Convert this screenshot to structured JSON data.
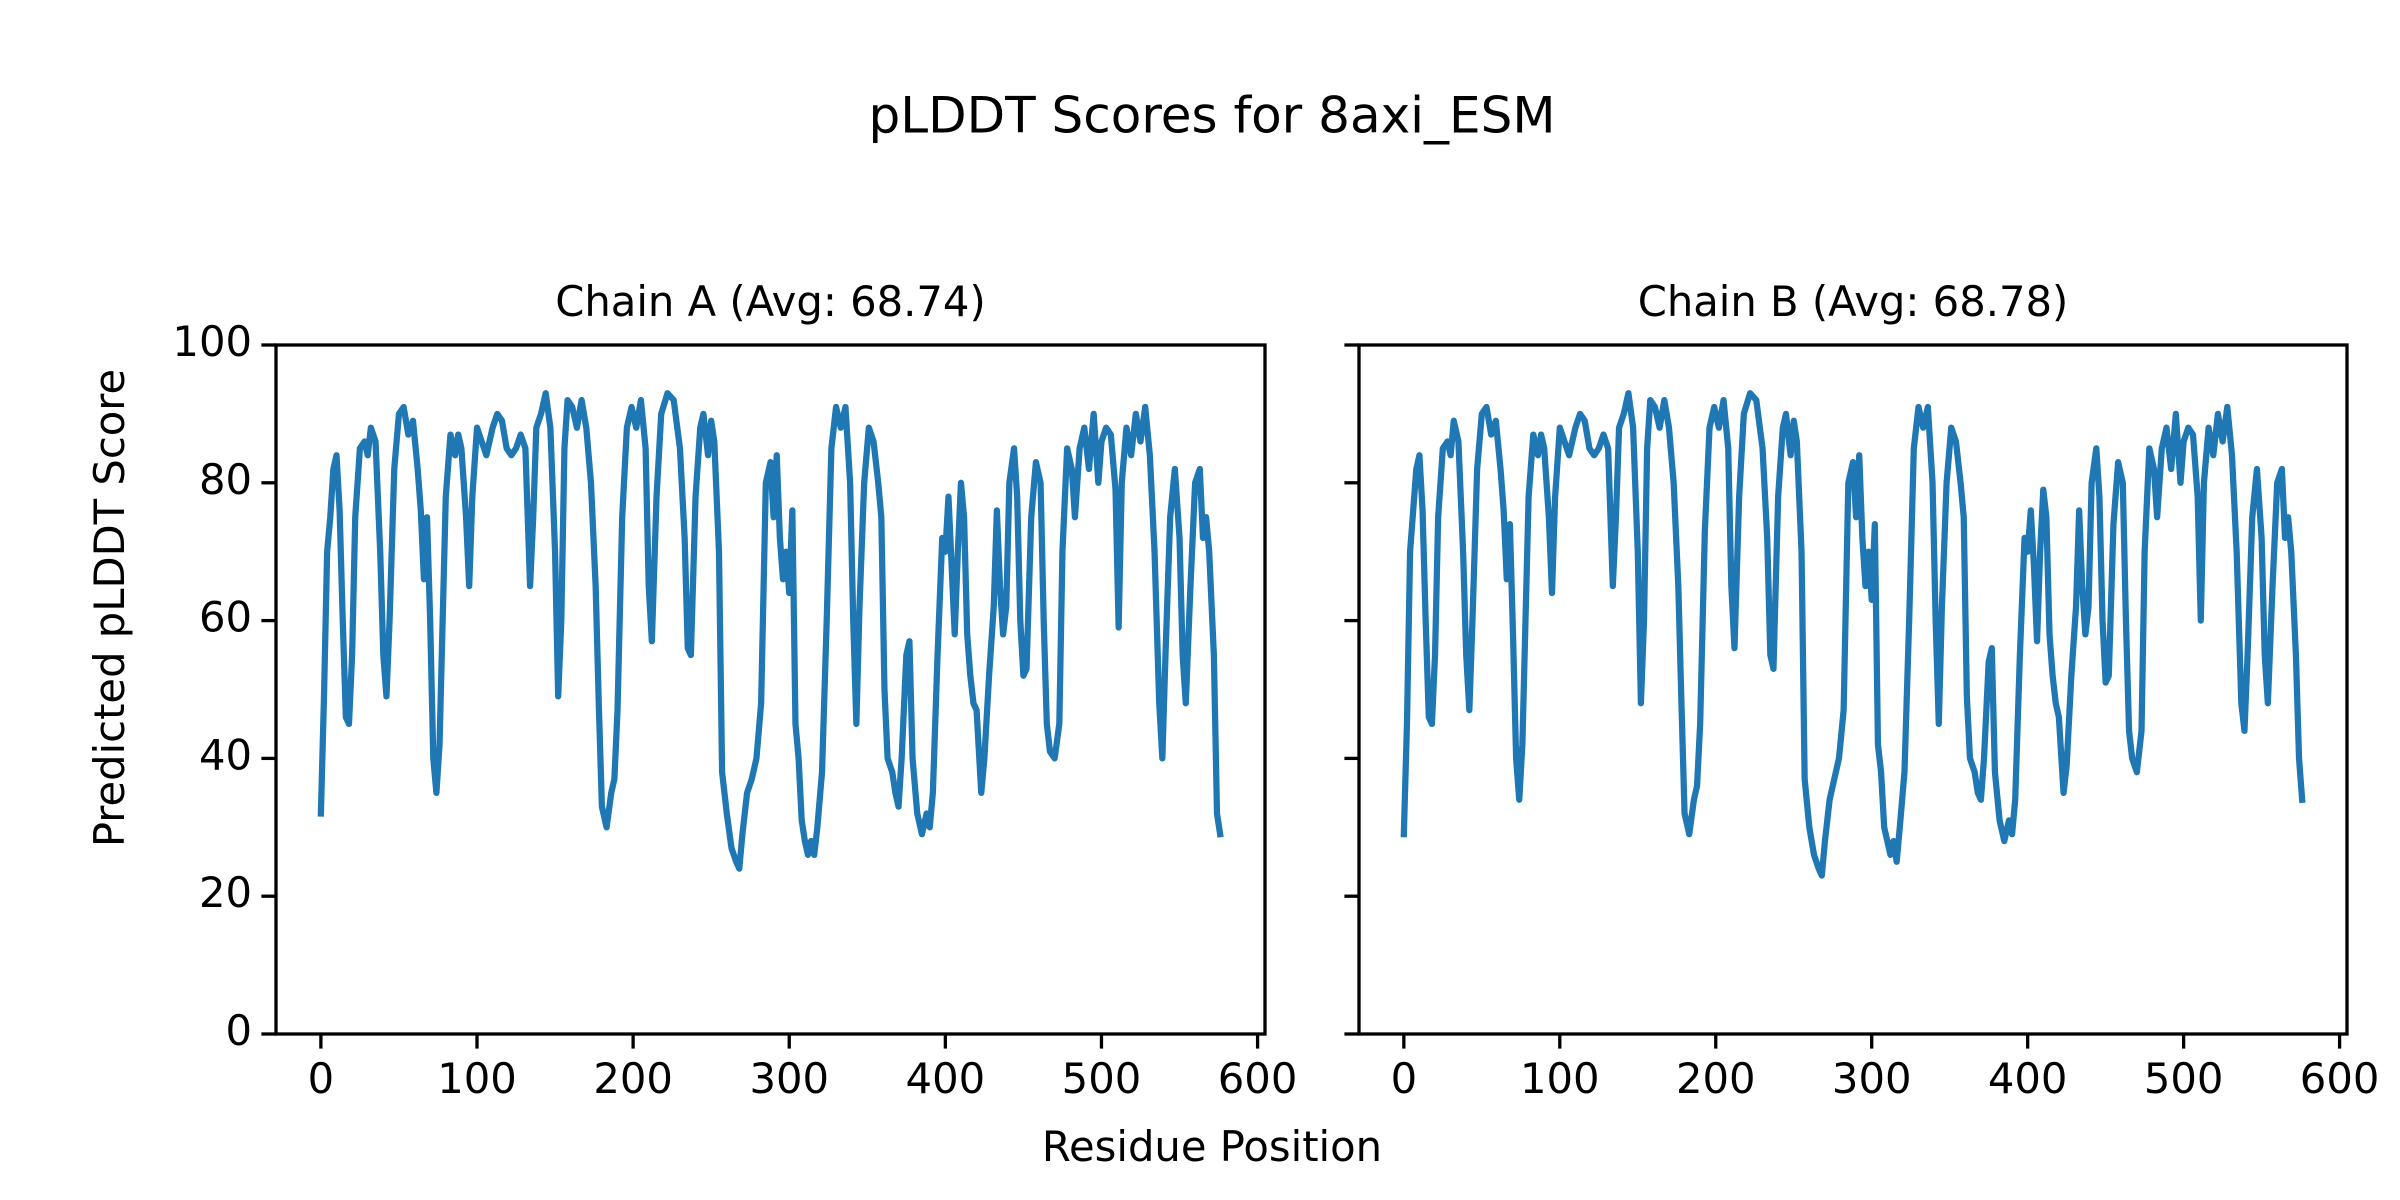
{
  "title": "pLDDT Scores for 8axi_ESM",
  "x_label": "Residue Position",
  "y_label": "Predicted pLDDT Score",
  "chart_data": [
    {
      "type": "line",
      "title": "Chain A (Avg: 68.74)",
      "color": "#1f77b4",
      "xlim": [
        -28.75,
        604.75
      ],
      "ylim": [
        0,
        100
      ],
      "xticks": [
        0,
        100,
        200,
        300,
        400,
        500,
        600
      ],
      "yticks": [
        0,
        20,
        40,
        60,
        80,
        100
      ],
      "ytick_labels": true,
      "x": [
        0,
        2,
        4,
        6,
        8,
        10,
        12,
        14,
        16,
        18,
        20,
        22,
        25,
        28,
        30,
        32,
        35,
        38,
        40,
        42,
        44,
        47,
        50,
        53,
        56,
        59,
        62,
        64,
        66,
        68,
        70,
        72,
        74,
        76,
        78,
        80,
        83,
        86,
        88,
        90,
        93,
        95,
        97,
        100,
        103,
        106,
        110,
        113,
        116,
        119,
        122,
        125,
        128,
        131,
        134,
        136,
        138,
        141,
        144,
        147,
        150,
        152,
        154,
        156,
        158,
        161,
        164,
        167,
        170,
        173,
        176,
        178,
        180,
        183,
        186,
        188,
        190,
        193,
        196,
        199,
        202,
        205,
        208,
        210,
        212,
        215,
        218,
        222,
        226,
        230,
        233,
        235,
        237,
        240,
        243,
        245,
        248,
        250,
        252,
        255,
        257,
        260,
        263,
        266,
        268,
        270,
        273,
        276,
        279,
        282,
        285,
        288,
        290,
        292,
        294,
        296,
        298,
        300,
        302,
        304,
        306,
        308,
        310,
        312,
        314,
        316,
        318,
        321,
        324,
        327,
        330,
        333,
        336,
        339,
        341,
        343,
        345,
        348,
        351,
        354,
        357,
        359,
        361,
        363,
        366,
        368,
        370,
        372,
        375,
        377,
        379,
        382,
        385,
        388,
        390,
        392,
        395,
        398,
        400,
        402,
        404,
        406,
        408,
        410,
        412,
        414,
        416,
        418,
        420,
        423,
        425,
        428,
        431,
        433,
        435,
        437,
        439,
        441,
        444,
        446,
        448,
        450,
        452,
        455,
        458,
        461,
        463,
        465,
        467,
        470,
        473,
        475,
        478,
        481,
        483,
        486,
        489,
        492,
        495,
        498,
        500,
        503,
        506,
        509,
        511,
        513,
        516,
        519,
        522,
        525,
        528,
        531,
        534,
        537,
        539,
        541,
        544,
        547,
        550,
        552,
        554,
        557,
        560,
        563,
        565,
        567,
        569,
        572,
        574,
        576
      ],
      "values": [
        32,
        49,
        70,
        75,
        82,
        84,
        76,
        60,
        46,
        45,
        55,
        75,
        85,
        86,
        84,
        88,
        86,
        70,
        55,
        49,
        60,
        82,
        90,
        91,
        87,
        89,
        82,
        76,
        66,
        75,
        60,
        40,
        35,
        42,
        60,
        78,
        87,
        84,
        87,
        85,
        75,
        65,
        78,
        88,
        86,
        84,
        88,
        90,
        89,
        85,
        84,
        85,
        87,
        85,
        65,
        75,
        88,
        90,
        93,
        88,
        70,
        49,
        60,
        85,
        92,
        91,
        88,
        92,
        88,
        80,
        65,
        48,
        33,
        30,
        35,
        37,
        47,
        75,
        88,
        91,
        88,
        92,
        85,
        65,
        57,
        78,
        90,
        93,
        92,
        85,
        72,
        56,
        55,
        78,
        88,
        90,
        84,
        89,
        86,
        70,
        38,
        32,
        27,
        25,
        24,
        29,
        35,
        37,
        40,
        48,
        80,
        83,
        75,
        84,
        72,
        66,
        70,
        64,
        76,
        45,
        40,
        31,
        28,
        26,
        28,
        26,
        30,
        38,
        60,
        85,
        91,
        88,
        91,
        80,
        60,
        45,
        62,
        80,
        88,
        86,
        80,
        75,
        50,
        40,
        38,
        35,
        33,
        40,
        55,
        57,
        40,
        32,
        29,
        32,
        30,
        35,
        55,
        72,
        70,
        78,
        68,
        58,
        70,
        80,
        75,
        58,
        52,
        48,
        47,
        35,
        40,
        52,
        62,
        76,
        65,
        58,
        62,
        80,
        85,
        78,
        60,
        52,
        53,
        75,
        83,
        80,
        60,
        45,
        41,
        40,
        45,
        70,
        85,
        82,
        75,
        85,
        88,
        82,
        90,
        80,
        86,
        88,
        87,
        79,
        59,
        80,
        88,
        84,
        90,
        86,
        91,
        84,
        70,
        48,
        40,
        55,
        75,
        82,
        72,
        55,
        48,
        65,
        80,
        82,
        72,
        75,
        70,
        55,
        32,
        29
      ]
    },
    {
      "type": "line",
      "title": "Chain B (Avg: 68.78)",
      "color": "#1f77b4",
      "xlim": [
        -28.75,
        604.75
      ],
      "ylim": [
        0,
        100
      ],
      "xticks": [
        0,
        100,
        200,
        300,
        400,
        500,
        600
      ],
      "yticks": [
        0,
        20,
        40,
        60,
        80,
        100
      ],
      "ytick_labels": false,
      "x": [
        0,
        2,
        4,
        6,
        8,
        10,
        12,
        14,
        16,
        18,
        20,
        22,
        25,
        28,
        30,
        32,
        35,
        38,
        40,
        42,
        44,
        47,
        50,
        53,
        56,
        59,
        62,
        64,
        66,
        68,
        70,
        72,
        74,
        76,
        78,
        80,
        83,
        86,
        88,
        90,
        93,
        95,
        97,
        100,
        103,
        106,
        110,
        113,
        116,
        119,
        122,
        125,
        128,
        131,
        134,
        136,
        138,
        141,
        144,
        147,
        150,
        152,
        154,
        156,
        158,
        161,
        164,
        167,
        170,
        173,
        176,
        178,
        180,
        183,
        186,
        188,
        190,
        193,
        196,
        199,
        202,
        205,
        208,
        210,
        212,
        215,
        218,
        222,
        226,
        230,
        233,
        235,
        237,
        240,
        243,
        245,
        248,
        250,
        252,
        255,
        257,
        260,
        263,
        266,
        268,
        270,
        273,
        276,
        279,
        282,
        285,
        288,
        290,
        292,
        294,
        296,
        298,
        300,
        302,
        304,
        306,
        308,
        310,
        312,
        314,
        316,
        318,
        321,
        324,
        327,
        330,
        333,
        336,
        339,
        341,
        343,
        345,
        348,
        351,
        354,
        357,
        359,
        361,
        363,
        366,
        368,
        370,
        372,
        375,
        377,
        379,
        382,
        385,
        388,
        390,
        392,
        395,
        398,
        400,
        402,
        404,
        406,
        408,
        410,
        412,
        414,
        416,
        418,
        420,
        423,
        425,
        428,
        431,
        433,
        435,
        437,
        439,
        441,
        444,
        446,
        448,
        450,
        452,
        455,
        458,
        461,
        463,
        465,
        467,
        470,
        473,
        475,
        478,
        481,
        483,
        486,
        489,
        492,
        495,
        498,
        500,
        503,
        506,
        509,
        511,
        513,
        516,
        519,
        522,
        525,
        528,
        531,
        534,
        537,
        539,
        541,
        544,
        547,
        550,
        552,
        554,
        557,
        560,
        563,
        565,
        567,
        569,
        572,
        574,
        576
      ],
      "values": [
        29,
        45,
        70,
        76,
        82,
        84,
        76,
        60,
        46,
        45,
        55,
        75,
        85,
        86,
        84,
        89,
        86,
        70,
        55,
        47,
        60,
        82,
        90,
        91,
        87,
        89,
        82,
        76,
        66,
        74,
        58,
        40,
        34,
        42,
        60,
        78,
        87,
        84,
        87,
        85,
        75,
        64,
        78,
        88,
        86,
        84,
        88,
        90,
        89,
        85,
        84,
        85,
        87,
        85,
        65,
        75,
        88,
        90,
        93,
        88,
        70,
        48,
        60,
        85,
        92,
        91,
        88,
        92,
        88,
        80,
        65,
        48,
        32,
        29,
        34,
        36,
        45,
        73,
        88,
        91,
        88,
        92,
        85,
        65,
        56,
        78,
        90,
        93,
        92,
        85,
        72,
        55,
        53,
        78,
        88,
        90,
        84,
        89,
        86,
        70,
        37,
        30,
        26,
        24,
        23,
        28,
        34,
        37,
        40,
        47,
        80,
        83,
        75,
        84,
        72,
        65,
        70,
        63,
        74,
        42,
        38,
        30,
        28,
        26,
        28,
        25,
        30,
        38,
        60,
        85,
        91,
        88,
        91,
        80,
        60,
        45,
        62,
        80,
        88,
        86,
        80,
        75,
        49,
        40,
        38,
        35,
        34,
        40,
        54,
        56,
        38,
        31,
        28,
        31,
        29,
        34,
        55,
        72,
        70,
        76,
        68,
        57,
        70,
        79,
        75,
        58,
        52,
        48,
        46,
        35,
        39,
        52,
        62,
        76,
        65,
        58,
        62,
        80,
        85,
        78,
        60,
        51,
        52,
        74,
        83,
        80,
        60,
        44,
        40,
        38,
        44,
        70,
        85,
        82,
        75,
        85,
        88,
        82,
        90,
        80,
        86,
        88,
        87,
        78,
        60,
        80,
        88,
        84,
        90,
        86,
        91,
        84,
        70,
        48,
        44,
        55,
        75,
        82,
        72,
        55,
        48,
        65,
        80,
        82,
        72,
        75,
        70,
        55,
        40,
        34
      ]
    }
  ]
}
